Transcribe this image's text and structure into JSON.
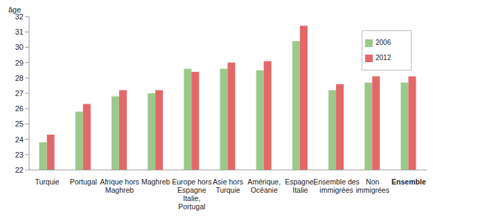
{
  "chart_data": {
    "type": "bar",
    "y_label": "âge",
    "categories": [
      "Turquie",
      "Portugal",
      "Afrique hors Maghreb",
      "Maghreb",
      "Europe hors Espagne Italie, Portugal",
      "Asie hors Turquie",
      "Amérique, Océanie",
      "Espagne, Italie",
      "Ensemble des immigrées",
      "Non immigrées",
      "Ensemble"
    ],
    "series": [
      {
        "name": "2006",
        "color": "#9cc98b",
        "values": [
          23.8,
          25.8,
          26.8,
          27.0,
          28.6,
          28.6,
          28.5,
          30.4,
          27.2,
          27.7,
          27.7
        ]
      },
      {
        "name": "2012",
        "color": "#e2686a",
        "values": [
          24.3,
          26.3,
          27.2,
          27.2,
          28.4,
          29.0,
          29.1,
          31.4,
          27.6,
          28.1,
          28.1
        ]
      }
    ],
    "ylim": [
      22,
      32
    ],
    "yticks": [
      22,
      23,
      24,
      25,
      26,
      27,
      28,
      29,
      30,
      31,
      32
    ],
    "grid": false,
    "legend": "upper right"
  }
}
